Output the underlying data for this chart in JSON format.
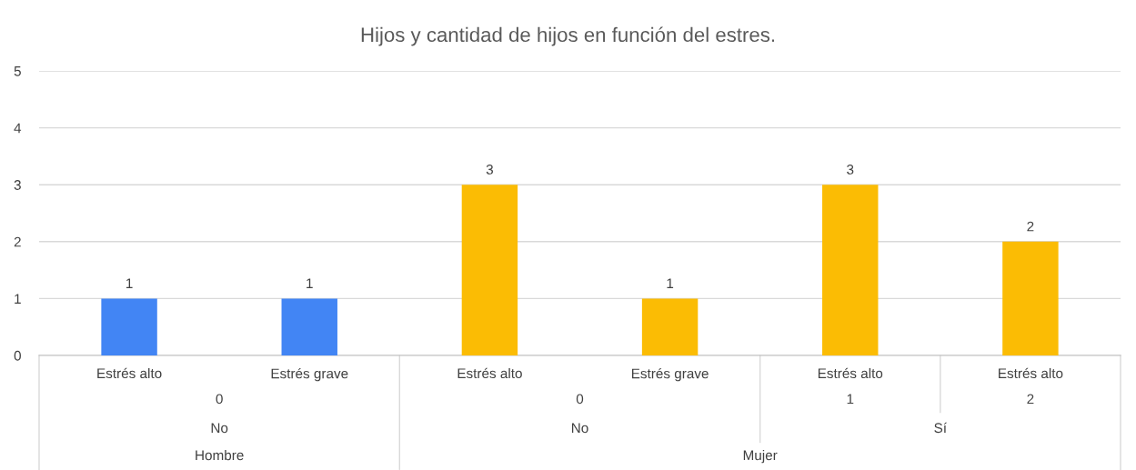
{
  "chart_data": {
    "type": "bar",
    "title": "Hijos y cantidad de hijos en función del estres.",
    "categories": [
      "Estrés alto",
      "Estrés grave",
      "Estrés alto",
      "Estrés grave",
      "Estrés alto",
      "Estrés alto"
    ],
    "values": [
      1,
      1,
      3,
      1,
      3,
      2
    ],
    "colors": [
      "#4285f4",
      "#4285f4",
      "#fbbc04",
      "#fbbc04",
      "#fbbc04",
      "#fbbc04"
    ],
    "ylim": [
      0,
      5
    ],
    "yticks": [
      0,
      1,
      2,
      3,
      4,
      5
    ],
    "grid": "y",
    "data_labels": true,
    "annotations": [
      "0",
      "No",
      "Hombre",
      "0",
      "No",
      "Mujer",
      "1",
      "Sí",
      "2"
    ]
  }
}
